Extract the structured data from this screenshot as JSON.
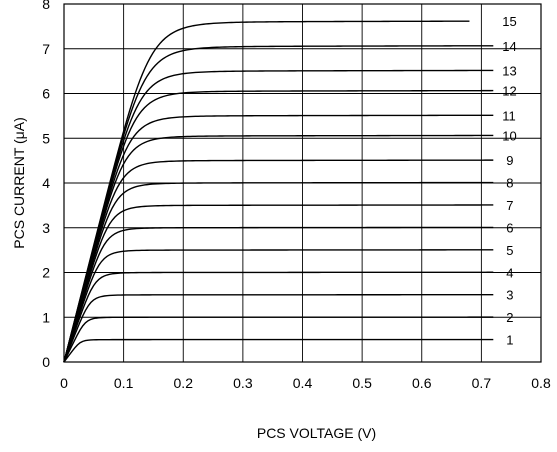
{
  "chart_data": {
    "type": "line",
    "title": "",
    "xlabel": "PCS VOLTAGE  (V)",
    "ylabel": "PCS CURRENT (μA)",
    "xlim": [
      0,
      0.8
    ],
    "ylim": [
      0,
      8
    ],
    "x_ticks": [
      "0",
      "0.1",
      "0.2",
      "0.3",
      "0.4",
      "0.5",
      "0.6",
      "0.7",
      "0.8"
    ],
    "y_ticks": [
      "0",
      "1",
      "2",
      "3",
      "4",
      "5",
      "6",
      "7",
      "8"
    ],
    "grid": true,
    "series": [
      {
        "name": "1",
        "saturation": 0.5,
        "x_end": 0.72
      },
      {
        "name": "2",
        "saturation": 1.0,
        "x_end": 0.72
      },
      {
        "name": "3",
        "saturation": 1.5,
        "x_end": 0.72
      },
      {
        "name": "4",
        "saturation": 2.0,
        "x_end": 0.72
      },
      {
        "name": "5",
        "saturation": 2.5,
        "x_end": 0.72
      },
      {
        "name": "6",
        "saturation": 3.0,
        "x_end": 0.72
      },
      {
        "name": "7",
        "saturation": 3.5,
        "x_end": 0.72
      },
      {
        "name": "8",
        "saturation": 4.0,
        "x_end": 0.72
      },
      {
        "name": "9",
        "saturation": 4.5,
        "x_end": 0.72
      },
      {
        "name": "10",
        "saturation": 5.05,
        "x_end": 0.72
      },
      {
        "name": "11",
        "saturation": 5.5,
        "x_end": 0.72
      },
      {
        "name": "12",
        "saturation": 6.05,
        "x_end": 0.72
      },
      {
        "name": "13",
        "saturation": 6.5,
        "x_end": 0.72
      },
      {
        "name": "14",
        "saturation": 7.05,
        "x_end": 0.72
      },
      {
        "name": "15",
        "saturation": 7.6,
        "x_end": 0.68
      }
    ]
  }
}
